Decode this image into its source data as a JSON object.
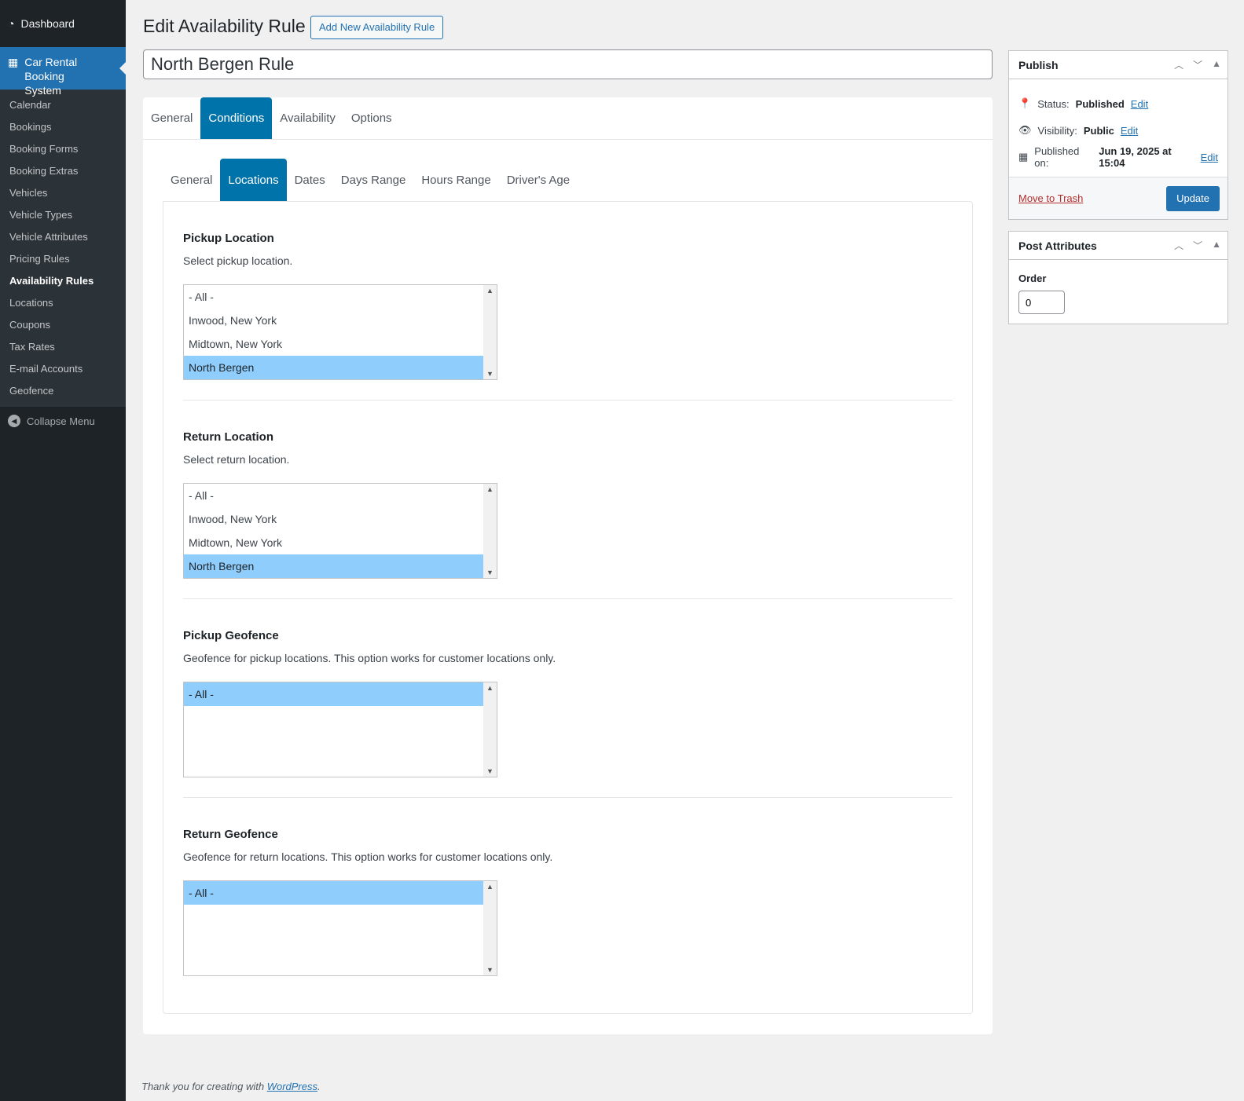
{
  "sidebar": {
    "dashboard": "Dashboard",
    "plugin": "Car Rental Booking System",
    "items": [
      "Calendar",
      "Bookings",
      "Booking Forms",
      "Booking Extras",
      "Vehicles",
      "Vehicle Types",
      "Vehicle Attributes",
      "Pricing Rules",
      "Availability Rules",
      "Locations",
      "Coupons",
      "Tax Rates",
      "E-mail Accounts",
      "Geofence"
    ],
    "current": "Availability Rules",
    "collapse": "Collapse Menu"
  },
  "header": {
    "title": "Edit Availability Rule",
    "add_new": "Add New Availability Rule",
    "post_title": "North Bergen Rule"
  },
  "tabs": [
    "General",
    "Conditions",
    "Availability",
    "Options"
  ],
  "active_tab": "Conditions",
  "subtabs": [
    "General",
    "Locations",
    "Dates",
    "Days Range",
    "Hours Range",
    "Driver's Age"
  ],
  "active_subtab": "Locations",
  "sections": [
    {
      "title": "Pickup Location",
      "desc": "Select pickup location.",
      "options": [
        "- All -",
        "Inwood, New York",
        "Midtown, New York",
        "North Bergen"
      ],
      "selected": "North Bergen"
    },
    {
      "title": "Return Location",
      "desc": "Select return location.",
      "options": [
        "- All -",
        "Inwood, New York",
        "Midtown, New York",
        "North Bergen"
      ],
      "selected": "North Bergen"
    },
    {
      "title": "Pickup Geofence",
      "desc": "Geofence for pickup locations. This option works for customer locations only.",
      "options": [
        "- All -"
      ],
      "selected": "- All -"
    },
    {
      "title": "Return Geofence",
      "desc": "Geofence for return locations. This option works for customer locations only.",
      "options": [
        "- All -"
      ],
      "selected": "- All -"
    }
  ],
  "publish": {
    "title": "Publish",
    "status_label": "Status:",
    "status": "Published",
    "visibility_label": "Visibility:",
    "visibility": "Public",
    "published_label": "Published on:",
    "published": "Jun 19, 2025 at 15:04",
    "edit": "Edit",
    "trash": "Move to Trash",
    "update": "Update"
  },
  "attributes": {
    "title": "Post Attributes",
    "order_label": "Order",
    "order": "0"
  },
  "footer": {
    "text": "Thank you for creating with ",
    "link": "WordPress",
    "end": "."
  }
}
